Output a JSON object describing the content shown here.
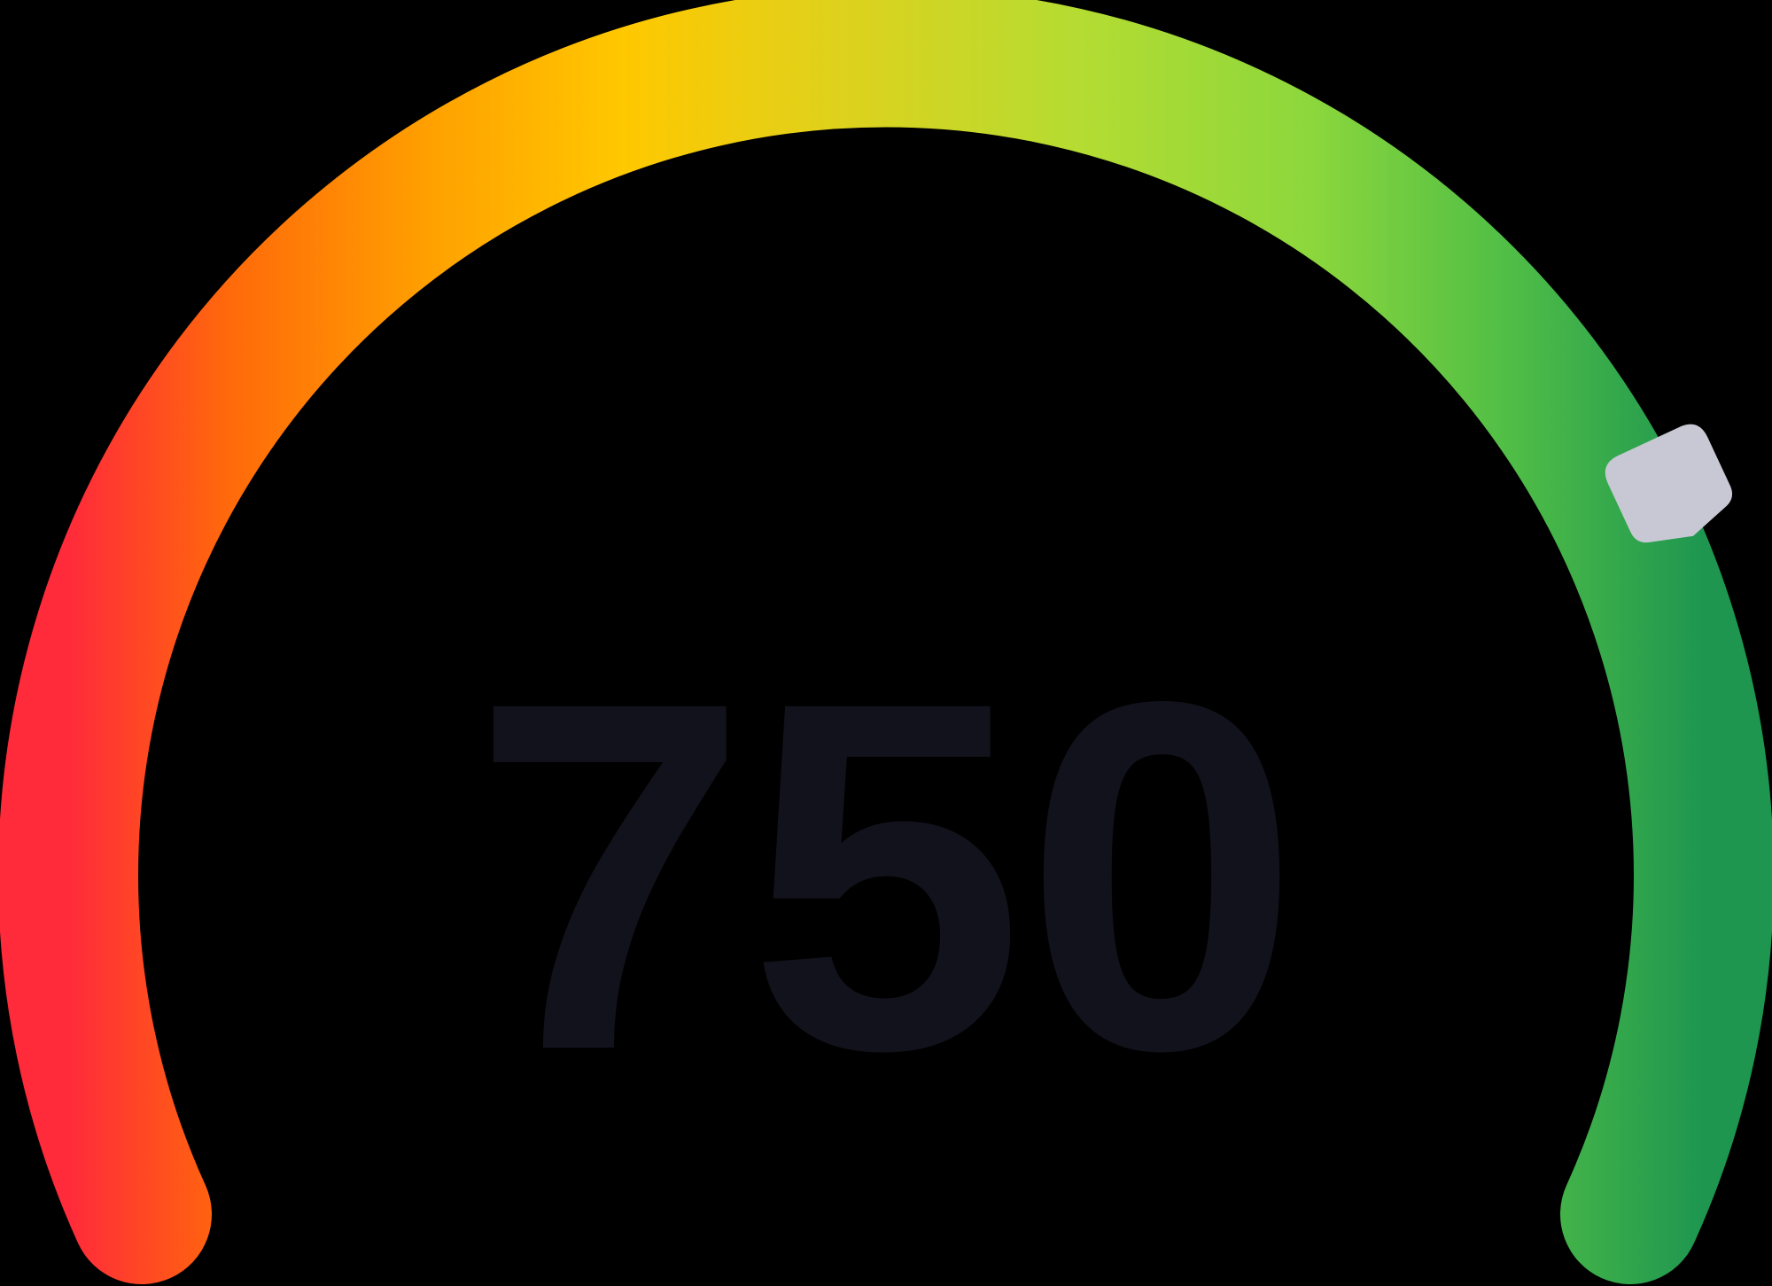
{
  "gauge": {
    "score": "750",
    "colors": {
      "background": "#000000",
      "text": "#12121c",
      "marker": "#c8c8d4",
      "gradient": [
        "#ff2a3a",
        "#ff6a0a",
        "#ffa000",
        "#ffc800",
        "#dcd21e",
        "#b4dc32",
        "#8cd73c",
        "#50be46",
        "#1e9650"
      ]
    }
  }
}
